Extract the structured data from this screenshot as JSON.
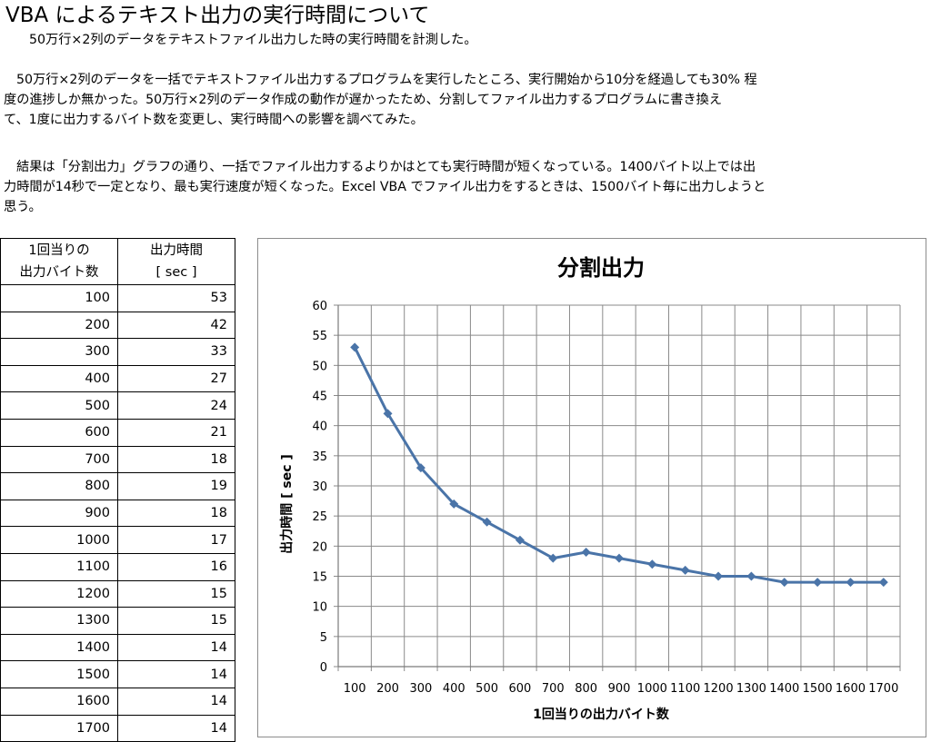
{
  "title": "VBA によるテキスト出力の実行時間について",
  "paragraphs": [
    [
      "50万行×2列のデータをテキストファイル出力した時の実行時間を計測した。"
    ],
    [
      "50万行×2列のデータを一括でテキストファイル出力するプログラムを実行したところ、実行開始から10分を経過しても30% 程",
      "度の進捗しか無かった。50万行×2列のデータ作成の動作が遅かったため、分割してファイル出力するプログラムに書き換え",
      "て、1度に出力するバイト数を変更し、実行時間への影響を調べてみた。"
    ],
    [
      "結果は「分割出力」グラフの通り、一括でファイル出力するよりかはとても実行時間が短くなっている。1400バイト以上では出",
      "力時間が14秒で一定となり、最も実行速度が短くなった。Excel VBA でファイル出力をするときは、1500バイト毎に出力しようと",
      "思う。"
    ]
  ],
  "table": {
    "header1": [
      "1回当りの",
      "出力バイト数"
    ],
    "header2": [
      "出力時間",
      "[ sec ]"
    ],
    "rows": [
      [
        "100",
        "53"
      ],
      [
        "200",
        "42"
      ],
      [
        "300",
        "33"
      ],
      [
        "400",
        "27"
      ],
      [
        "500",
        "24"
      ],
      [
        "600",
        "21"
      ],
      [
        "700",
        "18"
      ],
      [
        "800",
        "19"
      ],
      [
        "900",
        "18"
      ],
      [
        "1000",
        "17"
      ],
      [
        "1100",
        "16"
      ],
      [
        "1200",
        "15"
      ],
      [
        "1300",
        "15"
      ],
      [
        "1400",
        "14"
      ],
      [
        "1500",
        "14"
      ],
      [
        "1600",
        "14"
      ],
      [
        "1700",
        "14"
      ]
    ]
  },
  "chart_data": {
    "type": "line",
    "title": "分割出力",
    "xlabel": "1回当りの出力バイト数",
    "ylabel": "出力時間 [ sec ]",
    "categories": [
      "100",
      "200",
      "300",
      "400",
      "500",
      "600",
      "700",
      "800",
      "900",
      "1000",
      "1100",
      "1200",
      "1300",
      "1400",
      "1500",
      "1600",
      "1700"
    ],
    "series": [
      {
        "values": [
          53,
          42,
          33,
          27,
          24,
          21,
          18,
          19,
          18,
          17,
          16,
          15,
          15,
          14,
          14,
          14,
          14
        ],
        "color": "#4a74a8"
      }
    ],
    "ylim": [
      0,
      60
    ],
    "yticks": [
      0,
      5,
      10,
      15,
      20,
      25,
      30,
      35,
      40,
      45,
      50,
      55,
      60
    ],
    "grid": true,
    "legend": "none"
  }
}
